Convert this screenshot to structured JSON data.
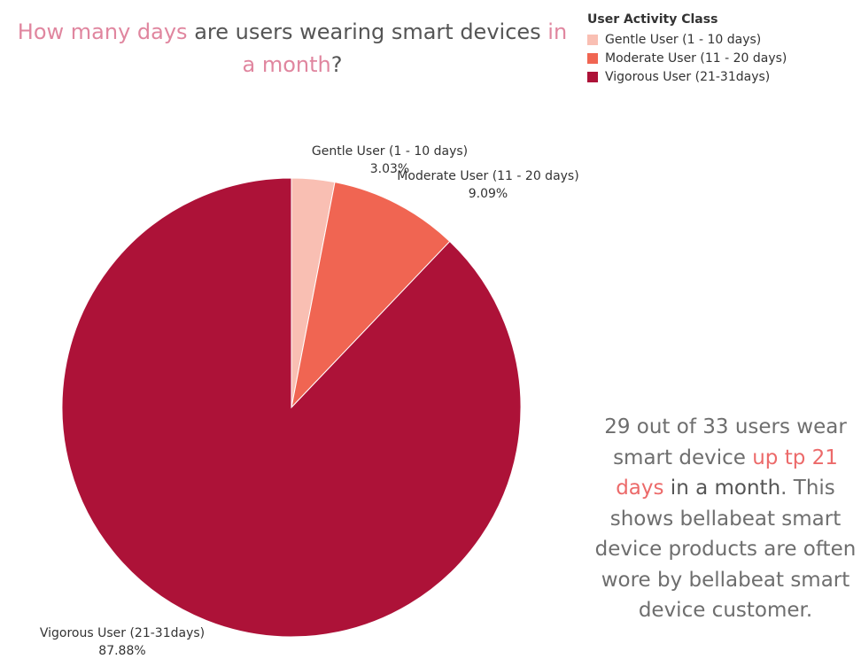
{
  "title": {
    "part1": "How many days",
    "part2": " are users wearing smart devices ",
    "part3": "in a month",
    "part4": "?"
  },
  "legend": {
    "title": "User Activity Class",
    "items": [
      {
        "label": "Gentle User (1 - 10 days)",
        "color": "#f9bfb3"
      },
      {
        "label": "Moderate User (11 - 20 days)",
        "color": "#f06552"
      },
      {
        "label": "Vigorous User (21-31days)",
        "color": "#ad1238"
      }
    ]
  },
  "chart_data": {
    "type": "pie",
    "title": "How many days are users wearing smart devices in a month?",
    "legend_title": "User Activity Class",
    "categories": [
      "Gentle User (1 - 10 days)",
      "Moderate User (11 - 20 days)",
      "Vigorous User (21-31days)"
    ],
    "values": [
      3.03,
      9.09,
      87.88
    ],
    "value_labels": [
      "3.03%",
      "9.09%",
      "87.88%"
    ],
    "colors": [
      "#f9bfb3",
      "#f06552",
      "#ad1238"
    ],
    "legend_position": "top-right"
  },
  "note": {
    "part1": "29 out of 33 users wear smart device ",
    "part2": "up tp 21 days",
    "part3": " in a month",
    "part4": ". This shows bellabeat smart device products are often wore by bellabeat smart device customer."
  }
}
